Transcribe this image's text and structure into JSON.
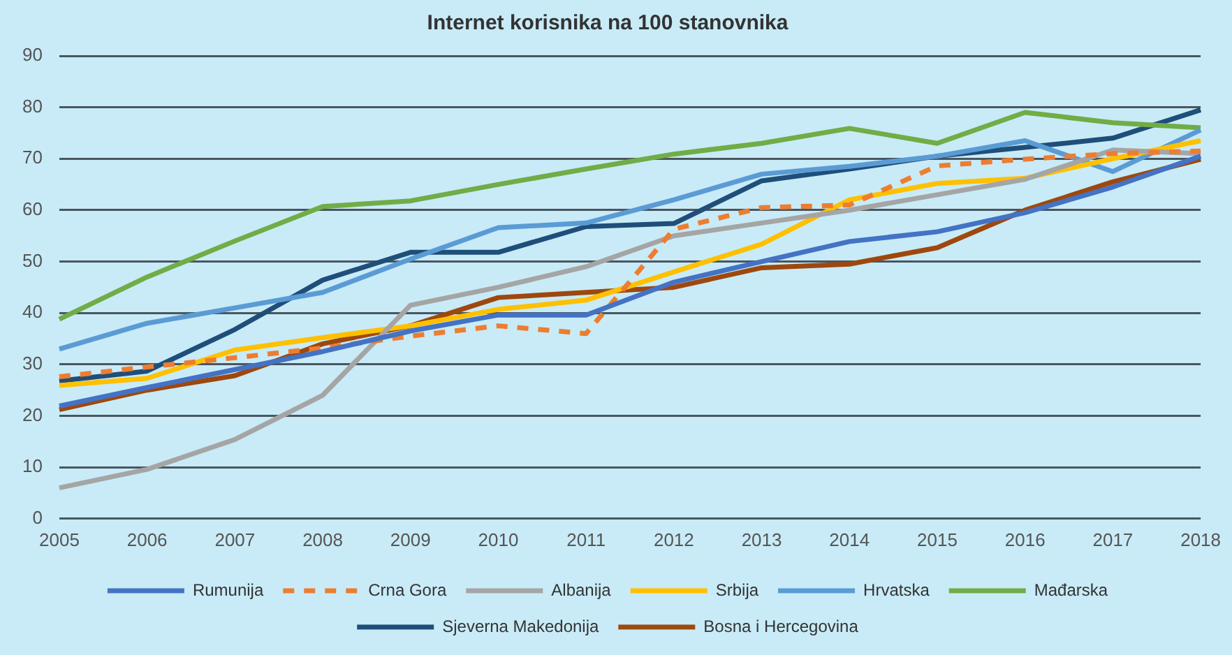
{
  "chart_data": {
    "type": "line",
    "title": "Internet korisnika na 100 stanovnika",
    "categories": [
      "2005",
      "2006",
      "2007",
      "2008",
      "2009",
      "2010",
      "2011",
      "2012",
      "2013",
      "2014",
      "2015",
      "2016",
      "2017",
      "2018"
    ],
    "ylim": [
      0,
      90
    ],
    "yticks": [
      0,
      10,
      20,
      30,
      40,
      50,
      60,
      70,
      80,
      90
    ],
    "grid": "y",
    "legend": "bottom",
    "marker": "none",
    "series": [
      {
        "name": "Rumunija",
        "color": "#4472c4",
        "values": [
          21.9,
          25.5,
          29,
          32.5,
          36.5,
          39.6,
          39.6,
          46,
          50,
          53.9,
          55.8,
          59.5,
          64.5,
          70.5
        ]
      },
      {
        "name": "Crna Gora",
        "color": "#ed7d31",
        "line_style": "dashed",
        "values": [
          27.6,
          29.5,
          31.3,
          33.2,
          35.5,
          37.5,
          36,
          56.3,
          60.5,
          61,
          68.6,
          69.9,
          71,
          71.5
        ]
      },
      {
        "name": "Albanija",
        "color": "#a5a5a5",
        "values": [
          6,
          9.6,
          15.4,
          24,
          41.5,
          45,
          49,
          55,
          57.5,
          60,
          63,
          66,
          71.7,
          71
        ]
      },
      {
        "name": "Srbija",
        "color": "#ffc000",
        "values": [
          25.9,
          27.3,
          32.8,
          35.2,
          37.5,
          40.7,
          42.5,
          48,
          53.4,
          62,
          65.2,
          66.2,
          70,
          73.5
        ]
      },
      {
        "name": "Hrvatska",
        "color": "#5b9bd5",
        "values": [
          33,
          38,
          41,
          44,
          50.5,
          56.6,
          57.5,
          62,
          67,
          68.5,
          70.5,
          73.5,
          67.5,
          75.6
        ]
      },
      {
        "name": "Mađarska",
        "color": "#70ad47",
        "values": [
          38.8,
          47,
          54,
          60.7,
          61.8,
          65,
          68,
          70.9,
          73,
          75.9,
          73,
          79,
          77,
          76
        ]
      },
      {
        "name": "Sjeverna Makedonija",
        "color": "#1f4e79",
        "values": [
          26.8,
          28.7,
          36.8,
          46.4,
          51.8,
          51.8,
          56.8,
          57.4,
          65.7,
          68,
          70.5,
          72.2,
          74,
          79.5
        ]
      },
      {
        "name": "Bosna i Hercegovina",
        "color": "#9e480e",
        "values": [
          21.2,
          25,
          27.8,
          34,
          37.5,
          43,
          44,
          45,
          48.8,
          49.5,
          52.7,
          60,
          65.5,
          69.9
        ]
      }
    ]
  }
}
